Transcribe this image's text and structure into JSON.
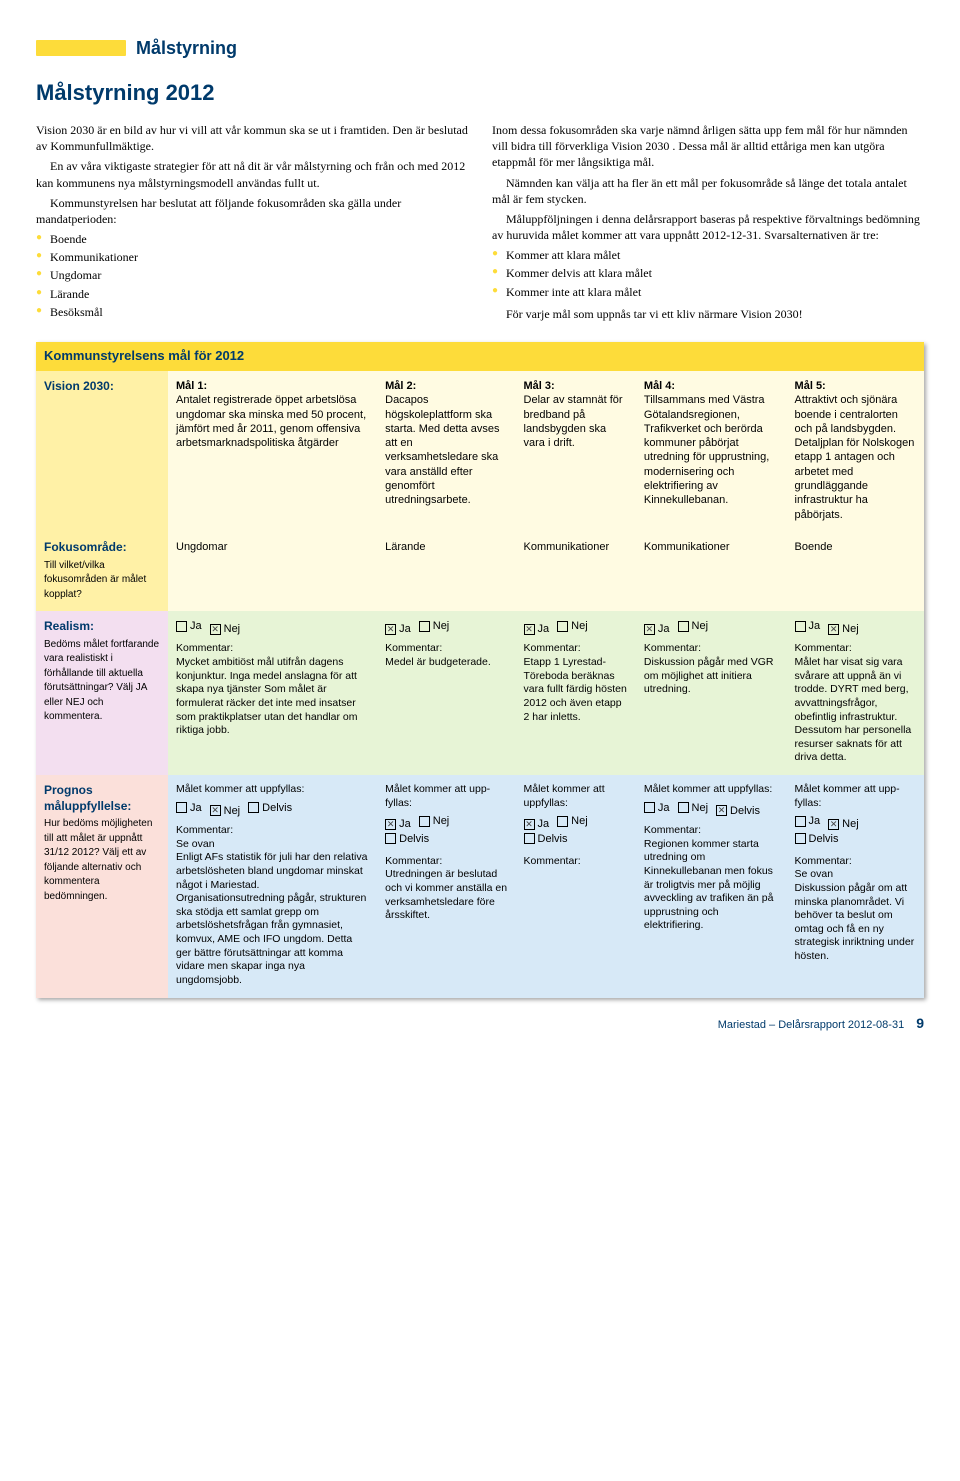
{
  "colors": {
    "accent_blue": "#003a6b",
    "yellow": "#fddc3a",
    "vision_bg": "#fffbe2",
    "vision_lbl": "#fff1a6",
    "realism_bg": "#e7f4d6",
    "realism_lbl": "#f3dff0",
    "prognos_bg": "#d7e9f7",
    "prognos_lbl": "#fbe0da"
  },
  "header": {
    "tab": "Målstyrning",
    "title": "Målstyrning 2012"
  },
  "intro": {
    "left_p1": "Vision 2030 är en bild av hur vi vill att vår kommun ska se ut i framtiden. Den är beslutad av Kommunfullmäktige.",
    "left_p2": "En av våra viktigaste strategier för att nå dit är vår målstyrning och från och med 2012 kan kommunens nya målstyrningsmodell användas fullt ut.",
    "left_p3": "Kommunstyrelsen har beslutat att följande fokusområden ska gälla under mandatperioden:",
    "bullets": [
      "Boende",
      "Kommunikationer",
      "Ungdomar",
      "Lärande",
      "Besöksmål"
    ],
    "right_p1": "Inom dessa fokusområden ska varje nämnd årligen sätta upp fem mål för hur nämnden vill bidra till förverkliga Vision 2030 . Dessa mål är alltid ettåriga men kan utgöra etappmål för mer långsiktiga mål.",
    "right_p2": "Nämnden kan välja att ha fler än ett mål per fokusområde så länge det totala antalet mål är fem stycken.",
    "right_p3": "Måluppföljningen i denna delårsrapport baseras på respektive förvaltnings bedömning av huruvida målet kommer att vara uppnått 2012-12-31. Svarsalternativen är tre:",
    "right_bullets": [
      "Kommer att klara målet",
      "Kommer delvis att klara målet",
      "Kommer inte att klara målet"
    ],
    "right_p4": "För varje mål som uppnås tar vi ett kliv närmare Vision 2030!"
  },
  "table": {
    "header_row": "Kommunstyrelsens mål för 2012",
    "labels": {
      "vision": {
        "title": "Vision 2030:"
      },
      "focus": {
        "title": "Fokusområde:",
        "sub": "Till vilket/vilka fokusområden är målet kopplat?"
      },
      "realism": {
        "title": "Realism:",
        "sub": "Bedöms målet fortfarande vara realistiskt i förhållande till aktuella förutsättningar? Välj JA eller NEJ och kommentera."
      },
      "prognos": {
        "title": "Prognos måluppfyllelse:",
        "sub": "Hur bedöms möjligheten till att målet är uppnått 31/12 2012? Välj ett av följande alternativ och kommentera bedömningen."
      }
    },
    "jn": {
      "ja": "Ja",
      "nej": "Nej",
      "delvis": "Delvis"
    },
    "kommentar_label": "Kommentar:",
    "uppfyllas": "Målet kommer att uppfyllas:",
    "uppfyllas_short": "Målet kommer att upp­fyllas:",
    "cols": [
      {
        "mal_head": "Mål 1:",
        "mal_text": "Antalet registrerade öppet arbetslösa ungdomar ska minska med 50 procent, jämfört med år 2011, genom offensiva arbetsmarknadspolitiska åtgärder",
        "focus": "Ungdomar",
        "realism_ja": false,
        "realism_nej": true,
        "realism_comment": "Mycket ambitiöst mål utifrån dagens konjunktur. Inga medel anslagna för att skapa nya tjänster Som målet är formulerat räcker det inte med insatser som praktikplatser utan det handlar om riktiga jobb.",
        "prog_ja": false,
        "prog_nej": true,
        "prog_delvis": false,
        "prog_comment": "Se ovan\nEnligt AFs statistik för juli har den relativa arbetslösheten bland ungdomar minskat något i Mariestad. Organisationsutredning pågår, strukturen ska stödja ett samlat grepp om arbetslöshetsfrågan från gymnasiet, komvux, AME och IFO ungdom. Detta ger bättre förutsättningar att komma vidare men skapar inga nya ungdomsjobb."
      },
      {
        "mal_head": "Mål 2:",
        "mal_text": "Dacapos högskoleplattform ska starta. Med detta avses att en verksamhetsledare ska vara anställd efter genomfört utredningsarbete.",
        "focus": "Lärande",
        "realism_ja": true,
        "realism_nej": false,
        "realism_comment": "Medel är budgeterade.",
        "prog_ja": true,
        "prog_nej": false,
        "prog_delvis": false,
        "prog_comment": "Utredningen är beslutad och vi kommer anställa en verksamhetsledare före årsskiftet."
      },
      {
        "mal_head": "Mål 3:",
        "mal_text": "Delar av stamnät för bredband på landsbygden ska vara i drift.",
        "focus": "Kommunikationer",
        "realism_ja": true,
        "realism_nej": false,
        "realism_comment": "Etapp 1 Lyrestad-Töreboda beräknas vara fullt färdig hösten 2012 och även etapp 2 har inletts.",
        "prog_ja": true,
        "prog_nej": false,
        "prog_delvis": false,
        "prog_comment": ""
      },
      {
        "mal_head": "Mål 4:",
        "mal_text": "Tillsammans med Västra Götalandsregionen, Trafikverket och berörda kommuner påbörjat utredning för upprustning, modernisering och elektrifiering av Kinnekullebanan.",
        "focus": "Kommunikationer",
        "realism_ja": true,
        "realism_nej": false,
        "realism_comment": "Diskussion pågår med VGR om möjlighet att initiera utredning.",
        "prog_ja": false,
        "prog_nej": false,
        "prog_delvis": true,
        "prog_comment": "Regionen kommer starta utredning om Kinnekullebanan men fokus är troligtvis mer på möjlig avveckling av trafiken än på upprustning och elektrifiering."
      },
      {
        "mal_head": "Mål 5:",
        "mal_text": "Attraktivt och sjönära boende i centralorten och på landsbygden.\nDetaljplan för Nolskogen etapp 1 antagen och arbetet med grundläggande infrastruktur ha påbörjats.",
        "focus": "Boende",
        "realism_ja": false,
        "realism_nej": true,
        "realism_comment": "Målet har visat sig vara svårare att uppnå än vi trodde. DYRT med berg, avvattningsfrågor, obefintlig infrastruktur. Dessutom har personella resurser saknats för att driva detta.",
        "prog_ja": false,
        "prog_nej": true,
        "prog_delvis": false,
        "prog_comment": "Se ovan\nDiskussion pågår om att minska planområdet. Vi behöver ta beslut om omtag och få en ny strategisk inriktning under hösten."
      }
    ]
  },
  "footer": {
    "text": "Mariestad – Delårsrapport 2012-08-31",
    "page": "9"
  }
}
